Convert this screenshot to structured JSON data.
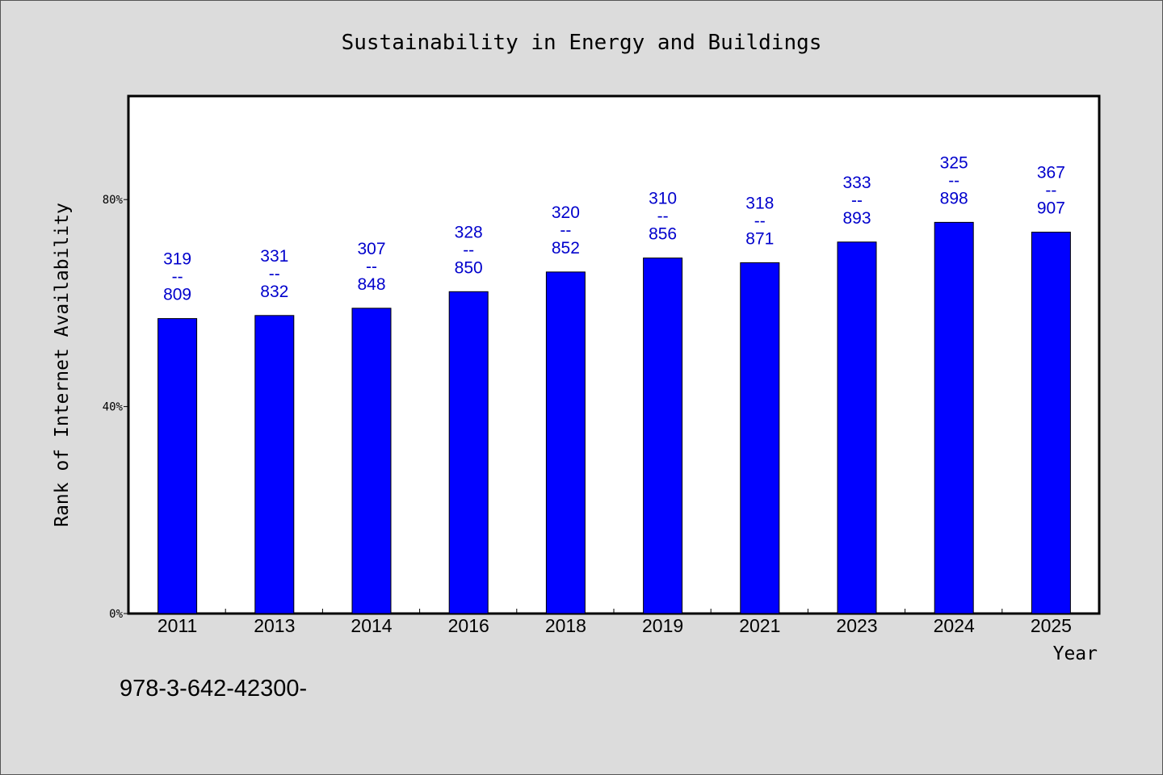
{
  "chart_data": {
    "type": "bar",
    "title": "Sustainability in Energy and Buildings",
    "xlabel": "Year",
    "ylabel": "Rank of Internet Availability",
    "categories": [
      "2011",
      "2013",
      "2014",
      "2016",
      "2018",
      "2019",
      "2021",
      "2023",
      "2024",
      "2025"
    ],
    "values": [
      57,
      57.6,
      59,
      62.2,
      66,
      68.7,
      67.8,
      71.8,
      75.6,
      73.7
    ],
    "value_unit": "%",
    "ylim": [
      0,
      100
    ],
    "yticks": [
      0,
      40,
      80
    ],
    "ytick_labels": [
      "0%",
      "40%",
      "80%"
    ],
    "data_labels": [
      {
        "top": "319",
        "sep": "--",
        "bottom": "809"
      },
      {
        "top": "331",
        "sep": "--",
        "bottom": "832"
      },
      {
        "top": "307",
        "sep": "--",
        "bottom": "848"
      },
      {
        "top": "328",
        "sep": "--",
        "bottom": "850"
      },
      {
        "top": "320",
        "sep": "--",
        "bottom": "852"
      },
      {
        "top": "310",
        "sep": "--",
        "bottom": "856"
      },
      {
        "top": "318",
        "sep": "--",
        "bottom": "871"
      },
      {
        "top": "333",
        "sep": "--",
        "bottom": "893"
      },
      {
        "top": "325",
        "sep": "--",
        "bottom": "898"
      },
      {
        "top": "367",
        "sep": "--",
        "bottom": "907"
      }
    ],
    "grid": false,
    "legend": "none",
    "colors": {
      "bar": "#0000ff",
      "bar_edge": "#000000",
      "data_label": "#0000cc",
      "plot_bg": "#ffffff",
      "page_bg": "#dcdcdc"
    }
  },
  "footnote": "978-3-642-42300-"
}
